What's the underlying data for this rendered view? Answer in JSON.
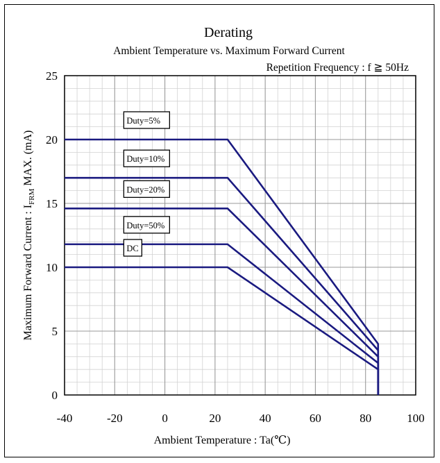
{
  "chart_data": {
    "type": "line",
    "title": "Derating",
    "subtitle": "Ambient Temperature vs. Maximum Forward Current",
    "condition": "Repetition Frequency : f ≧ 50Hz",
    "xlabel": "Ambient Temperature : Ta(℃)",
    "ylabel": {
      "prefix": "Maximum Forward Current : I",
      "subscript": "FRM",
      "suffix": " MAX. (mA)"
    },
    "xlim": [
      -40,
      100
    ],
    "ylim": [
      0,
      25
    ],
    "xticks": [
      "-40",
      "-20",
      "0",
      "20",
      "40",
      "60",
      "80",
      "100"
    ],
    "yticks": [
      "0",
      "5",
      "10",
      "15",
      "20",
      "25"
    ],
    "grid": true,
    "line_color": "#1a1a80",
    "series": [
      {
        "name": "Duty=5%",
        "x": [
          -40,
          25,
          85,
          85
        ],
        "y": [
          20,
          20,
          4,
          0
        ]
      },
      {
        "name": "Duty=10%",
        "x": [
          -40,
          25,
          85,
          85
        ],
        "y": [
          17,
          17,
          3.5,
          0
        ]
      },
      {
        "name": "Duty=20%",
        "x": [
          -40,
          25,
          85,
          85
        ],
        "y": [
          14.6,
          14.6,
          3,
          0
        ]
      },
      {
        "name": "Duty=50%",
        "x": [
          -40,
          25,
          85,
          85
        ],
        "y": [
          11.8,
          11.8,
          2.5,
          0
        ]
      },
      {
        "name": "DC",
        "x": [
          -40,
          25,
          85,
          85
        ],
        "y": [
          10,
          10,
          2,
          0
        ]
      }
    ]
  }
}
